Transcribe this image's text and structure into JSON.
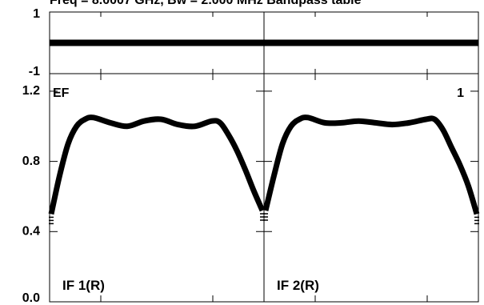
{
  "title": "Freq = 8.0007 GHz, Bw = 2.000 MHz   Bandpass table",
  "chart_data": [
    {
      "type": "line",
      "panel": "phase",
      "ylim": [
        -1,
        1
      ],
      "y_ticks": [
        "1",
        "-1"
      ],
      "series": [
        {
          "subplot": "IF 1(R)",
          "values": [
            0,
            0,
            0,
            0,
            0,
            0,
            0,
            0,
            0,
            0,
            0,
            0,
            0,
            0,
            0
          ]
        },
        {
          "subplot": "IF 2(R)",
          "values": [
            0,
            0,
            0,
            0,
            0,
            0,
            0,
            0,
            0,
            0,
            0,
            0,
            0,
            0,
            0
          ]
        }
      ],
      "grid": false
    },
    {
      "type": "line",
      "panel": "amplitude",
      "ylim": [
        0.0,
        1.3
      ],
      "y_ticks": [
        "1.2",
        "0.8",
        "0.4",
        "0.0"
      ],
      "annotations": {
        "top_left": "EF",
        "top_right": "1"
      },
      "x": [
        0,
        0.04,
        0.08,
        0.12,
        0.16,
        0.2,
        0.28,
        0.36,
        0.44,
        0.52,
        0.6,
        0.68,
        0.76,
        0.8,
        0.84,
        0.88,
        0.92,
        0.96,
        1.0
      ],
      "series": [
        {
          "subplot": "IF 1(R)",
          "values": [
            0.5,
            0.72,
            0.9,
            1.0,
            1.04,
            1.05,
            1.02,
            1.0,
            1.03,
            1.04,
            1.01,
            1.0,
            1.03,
            1.02,
            0.95,
            0.86,
            0.75,
            0.63,
            0.52
          ]
        },
        {
          "subplot": "IF 2(R)",
          "values": [
            0.52,
            0.72,
            0.9,
            1.0,
            1.04,
            1.05,
            1.02,
            1.02,
            1.03,
            1.02,
            1.01,
            1.02,
            1.04,
            1.04,
            0.98,
            0.88,
            0.78,
            0.66,
            0.5
          ]
        }
      ],
      "grid": false
    }
  ]
}
